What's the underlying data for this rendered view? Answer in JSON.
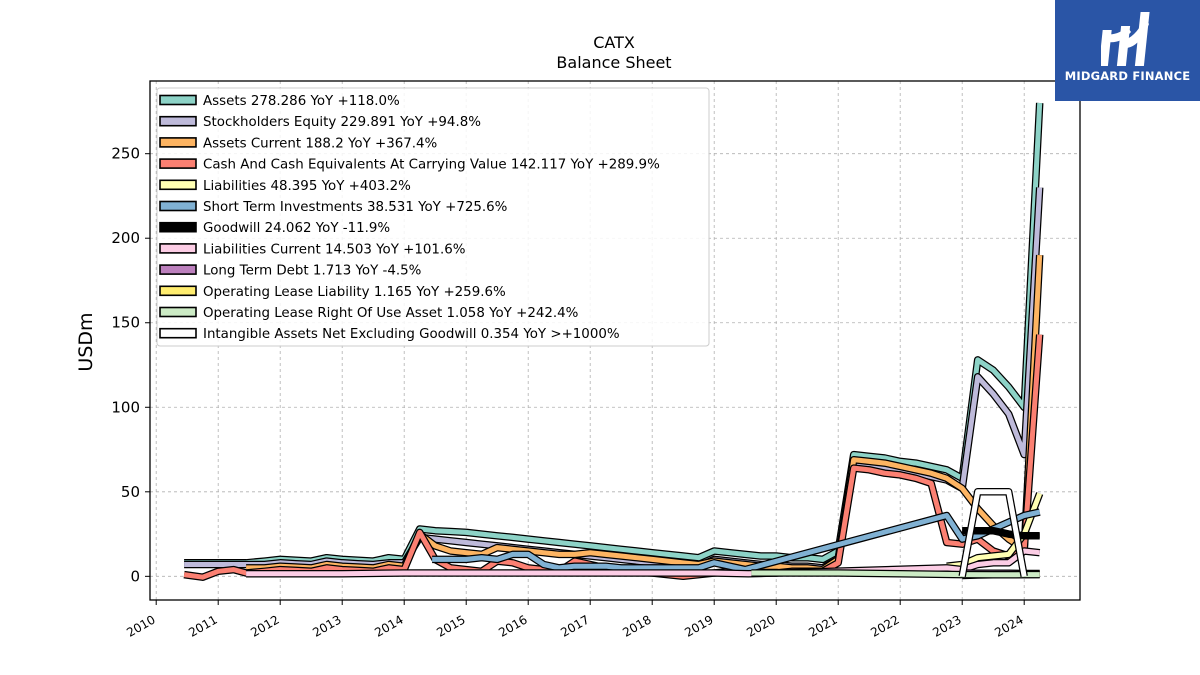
{
  "brand": {
    "name": "MIDGARD FINANCE",
    "bg_color": "#2a55a6"
  },
  "chart_data": {
    "type": "line",
    "title": "CATX",
    "subtitle": "Balance  Sheet",
    "xlabel": "",
    "ylabel": "USDm",
    "xlim": [
      2009.9,
      2024.9
    ],
    "ylim": [
      -14,
      293
    ],
    "xticks": [
      "2010",
      "2011",
      "2012",
      "2013",
      "2014",
      "2015",
      "2016",
      "2017",
      "2018",
      "2019",
      "2020",
      "2021",
      "2022",
      "2023",
      "2024"
    ],
    "yticks": [
      0,
      50,
      100,
      150,
      200,
      250
    ],
    "grid": true,
    "legend_position": "top-left",
    "series": [
      {
        "name": "Assets  278.286 YoY +118.0%",
        "color": "#8dd3c7",
        "x": [
          2010.45,
          2011.45,
          2011.75,
          2012.0,
          2012.25,
          2012.5,
          2012.75,
          2013.0,
          2013.25,
          2013.5,
          2013.75,
          2014.0,
          2014.25,
          2014.5,
          2014.75,
          2015.0,
          2015.25,
          2015.5,
          2015.75,
          2016.0,
          2016.25,
          2016.5,
          2016.75,
          2017.0,
          2017.25,
          2017.5,
          2017.75,
          2018.0,
          2018.25,
          2018.5,
          2018.75,
          2019.0,
          2019.25,
          2019.5,
          2019.75,
          2020.0,
          2020.25,
          2020.5,
          2020.75,
          2021.0,
          2021.25,
          2021.5,
          2021.75,
          2022.0,
          2022.25,
          2022.5,
          2022.75,
          2023.0,
          2023.25,
          2023.5,
          2023.75,
          2024.0,
          2024.25
        ],
        "y": [
          8,
          8,
          9,
          10,
          9.5,
          9,
          11,
          10,
          9.5,
          9,
          11,
          10,
          28,
          27,
          26.5,
          26,
          25,
          24,
          23,
          22,
          21,
          20,
          19,
          18,
          17,
          16,
          15,
          14,
          13,
          12,
          11,
          15,
          14,
          13,
          12,
          12,
          11,
          11,
          10,
          15,
          72,
          71,
          70,
          68,
          67,
          65,
          63,
          58,
          128,
          122,
          112,
          100,
          280
        ]
      },
      {
        "name": "Stockholders Equity  229.891 YoY +94.8%",
        "color": "#bebada",
        "x": [
          2010.45,
          2011.45,
          2011.75,
          2012.0,
          2012.25,
          2012.5,
          2012.75,
          2013.0,
          2013.25,
          2013.5,
          2013.75,
          2014.0,
          2014.25,
          2014.5,
          2014.75,
          2015.0,
          2015.25,
          2015.5,
          2015.75,
          2016.0,
          2016.25,
          2016.5,
          2016.75,
          2017.0,
          2017.25,
          2017.5,
          2017.75,
          2018.0,
          2018.25,
          2018.5,
          2018.75,
          2019.0,
          2019.25,
          2019.5,
          2019.75,
          2020.0,
          2020.25,
          2020.5,
          2020.75,
          2021.0,
          2021.25,
          2021.5,
          2021.75,
          2022.0,
          2022.25,
          2022.5,
          2022.75,
          2023.0,
          2023.25,
          2023.5,
          2023.75,
          2024.0,
          2024.25
        ],
        "y": [
          7,
          7,
          7,
          8,
          7.5,
          7,
          9,
          8,
          7.5,
          7,
          8,
          8,
          23,
          22,
          21,
          20,
          19,
          18,
          17,
          16,
          15,
          14,
          13,
          12,
          11,
          10,
          9,
          8,
          7,
          6,
          6,
          10,
          9,
          8,
          7,
          7,
          6,
          6,
          5,
          10,
          66,
          65,
          64,
          62,
          61,
          59,
          57,
          52,
          118,
          108,
          96,
          72,
          230
        ]
      },
      {
        "name": "Assets Current  188.2 YoY +367.4%",
        "color": "#fdb462",
        "x": [
          2011.45,
          2011.75,
          2012.0,
          2012.25,
          2012.5,
          2012.75,
          2013.0,
          2013.25,
          2013.5,
          2013.75,
          2014.0,
          2014.25,
          2014.5,
          2014.75,
          2015.0,
          2015.25,
          2015.5,
          2015.75,
          2016.0,
          2016.25,
          2016.5,
          2016.75,
          2017.0,
          2017.25,
          2017.5,
          2017.75,
          2018.0,
          2018.25,
          2018.5,
          2018.75,
          2019.0,
          2019.25,
          2019.5,
          2019.75,
          2020.0,
          2020.25,
          2020.5,
          2020.75,
          2021.0,
          2021.25,
          2021.5,
          2021.75,
          2022.0,
          2022.25,
          2022.5,
          2022.75,
          2023.0,
          2023.25,
          2023.5,
          2023.75,
          2024.0,
          2024.25
        ],
        "y": [
          5,
          5,
          6,
          5.5,
          5,
          7,
          6,
          5.5,
          5,
          7,
          6,
          25,
          18,
          15,
          14,
          13,
          17,
          16,
          15,
          14,
          13,
          13,
          14,
          13,
          12,
          11,
          10,
          9,
          8,
          7,
          9,
          8,
          7,
          6,
          6,
          5,
          5,
          4,
          10,
          69,
          68,
          67,
          65,
          63,
          61,
          58,
          52,
          40,
          30,
          22,
          16,
          190
        ]
      },
      {
        "name": "Cash And Cash Equivalents At Carrying Value  142.117 YoY +289.9%",
        "color": "#fb8072",
        "x": [
          2010.45,
          2010.75,
          2011.0,
          2011.25,
          2011.45,
          2011.75,
          2012.0,
          2012.25,
          2012.5,
          2012.75,
          2013.0,
          2013.25,
          2013.5,
          2013.75,
          2014.0,
          2014.25,
          2014.5,
          2014.75,
          2015.0,
          2015.25,
          2015.5,
          2015.75,
          2016.0,
          2016.25,
          2016.5,
          2016.75,
          2017.0,
          2017.25,
          2017.5,
          2017.75,
          2018.0,
          2018.25,
          2018.5,
          2018.75,
          2019.0,
          2019.25,
          2019.5,
          2019.75,
          2020.0,
          2020.25,
          2020.5,
          2020.75,
          2021.0,
          2021.25,
          2021.5,
          2021.75,
          2022.0,
          2022.25,
          2022.5,
          2022.75,
          2023.0,
          2023.25,
          2023.5,
          2023.75,
          2024.0,
          2024.25
        ],
        "y": [
          1,
          -0.5,
          3,
          4,
          2,
          3,
          4,
          3.5,
          3,
          5,
          4,
          3.5,
          3,
          5,
          4,
          26,
          10,
          5,
          4,
          3,
          9,
          8,
          5,
          4,
          3,
          9,
          7,
          5,
          4,
          3,
          2,
          1,
          0,
          1,
          2,
          3,
          2,
          2,
          2,
          3,
          3,
          3,
          8,
          64,
          63,
          61,
          60,
          58,
          55,
          20,
          19,
          22,
          15,
          12,
          16,
          143
        ]
      },
      {
        "name": "Liabilities  48.395 YoY +403.2%",
        "color": "#ffffb3",
        "x": [
          2022.75,
          2023.0,
          2023.25,
          2023.5,
          2023.75,
          2024.0,
          2024.25
        ],
        "y": [
          6,
          7,
          11,
          12,
          13,
          25,
          49
        ]
      },
      {
        "name": "Short Term Investments  38.531 YoY +725.6%",
        "color": "#80b1d3",
        "x": [
          2014.45,
          2014.75,
          2015.0,
          2015.25,
          2015.5,
          2015.75,
          2016.0,
          2016.25,
          2016.5,
          2016.75,
          2017.0,
          2017.25,
          2017.5,
          2017.75,
          2018.0,
          2018.25,
          2018.5,
          2018.75,
          2019.0,
          2019.25,
          2019.5,
          2022.75,
          2023.0,
          2023.25,
          2023.5,
          2023.75,
          2024.0,
          2024.25
        ],
        "y": [
          10,
          10,
          10,
          11,
          10,
          13,
          13,
          7,
          5,
          6,
          6,
          6,
          5,
          5,
          5,
          5,
          5,
          5,
          8,
          6,
          4,
          36,
          22,
          24,
          28,
          32,
          36,
          38
        ]
      },
      {
        "name": "Goodwill  24.062 YoY -11.9%",
        "color": "#000000",
        "x": [
          2023.0,
          2023.25,
          2023.5,
          2023.75,
          2024.0,
          2024.25
        ],
        "y": [
          27,
          27,
          27,
          25,
          24,
          24
        ]
      },
      {
        "name": "Liabilities Current  14.503 YoY +101.6%",
        "color": "#fccde5",
        "x": [
          2011.45,
          2012.0,
          2013.0,
          2014.0,
          2015.0,
          2016.0,
          2017.0,
          2018.0,
          2019.0,
          2019.55,
          2022.75,
          2023.0,
          2023.25,
          2023.5,
          2023.75,
          2024.0,
          2024.25
        ],
        "y": [
          1.5,
          1.5,
          1.5,
          2,
          2,
          2,
          2,
          2,
          2,
          1.5,
          5,
          4,
          7,
          8,
          8,
          15,
          14
        ]
      },
      {
        "name": "Long Term Debt  1.713 YoY -4.5%",
        "color": "#bc80bd",
        "x": [
          2023.0,
          2023.25,
          2023.5,
          2023.75,
          2024.0,
          2024.25
        ],
        "y": [
          2,
          1.8,
          1.8,
          1.8,
          1.7,
          1.7
        ]
      },
      {
        "name": "Operating Lease Liability  1.165 YoY +259.6%",
        "color": "#ffed6f",
        "x": [
          2023.0,
          2023.25,
          2023.5,
          2023.75,
          2024.0,
          2024.25
        ],
        "y": [
          0.5,
          0.8,
          0.9,
          1,
          1.1,
          1.2
        ]
      },
      {
        "name": "Operating Lease Right Of Use Asset  1.058 YoY +242.4%",
        "color": "#ccebc5",
        "x": [
          2019.6,
          2020.0,
          2021.0,
          2022.0,
          2023.0,
          2023.5,
          2023.75,
          2024.0,
          2024.25
        ],
        "y": [
          2,
          2,
          2,
          1.5,
          1,
          0.9,
          0.9,
          1.0,
          1.0
        ]
      },
      {
        "name": "Intangible Assets Net Excluding Goodwill  0.354 YoY >+1000%",
        "color": "#ffffff",
        "x": [
          2023.0,
          2023.25,
          2023.5,
          2023.75,
          2024.0
        ],
        "y": [
          0,
          50,
          50,
          50,
          0
        ]
      }
    ]
  }
}
